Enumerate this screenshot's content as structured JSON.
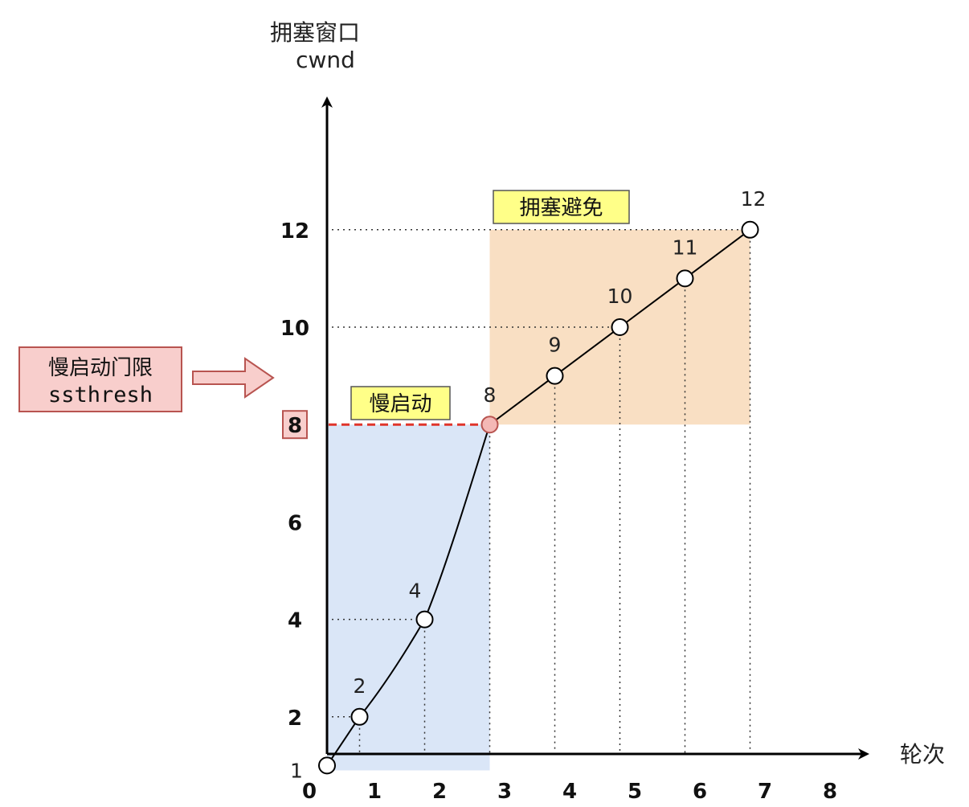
{
  "chart_data": {
    "type": "line",
    "ylabel": [
      "拥塞窗口",
      "cwnd"
    ],
    "xlabel": "轮次",
    "xlim": [
      0,
      8
    ],
    "ylim": [
      0,
      13
    ],
    "x_ticks": [
      "0",
      "1",
      "2",
      "3",
      "4",
      "5",
      "6",
      "7",
      "8"
    ],
    "y_ticks": [
      {
        "value": 2,
        "label": "2"
      },
      {
        "value": 4,
        "label": "4"
      },
      {
        "value": 6,
        "label": "6"
      },
      {
        "value": 8,
        "label": "8"
      },
      {
        "value": 10,
        "label": "10"
      },
      {
        "value": 12,
        "label": "12"
      }
    ],
    "series": [
      {
        "points": [
          {
            "x": 0,
            "y": 1,
            "label": "1"
          },
          {
            "x": 0.5,
            "y": 2,
            "label": "2"
          },
          {
            "x": 1.5,
            "y": 4,
            "label": "4"
          },
          {
            "x": 2.5,
            "y": 8,
            "label": "8"
          },
          {
            "x": 3.5,
            "y": 9,
            "label": "9"
          },
          {
            "x": 4.5,
            "y": 10,
            "label": "10"
          },
          {
            "x": 5.5,
            "y": 11,
            "label": "11"
          },
          {
            "x": 6.5,
            "y": 12,
            "label": "12"
          }
        ]
      }
    ],
    "regions": [
      {
        "label": "慢启动",
        "x": [
          0,
          2.5
        ],
        "y": [
          0.9,
          8
        ],
        "color": "#dae6f7"
      },
      {
        "label": "拥塞避免",
        "x": [
          2.5,
          6.5
        ],
        "y": [
          8,
          12
        ],
        "color": "#f9dfc3"
      }
    ],
    "threshold": {
      "value": 8,
      "label": "8",
      "annotation": [
        "慢启动门限",
        "ssthresh"
      ],
      "color": "#e0352b"
    },
    "colors": {
      "threshold_point": "#f4b8b5",
      "annotation_box": "#f8cecc",
      "annotation_border": "#b85450",
      "region_label_bg": "#ffff88"
    }
  }
}
